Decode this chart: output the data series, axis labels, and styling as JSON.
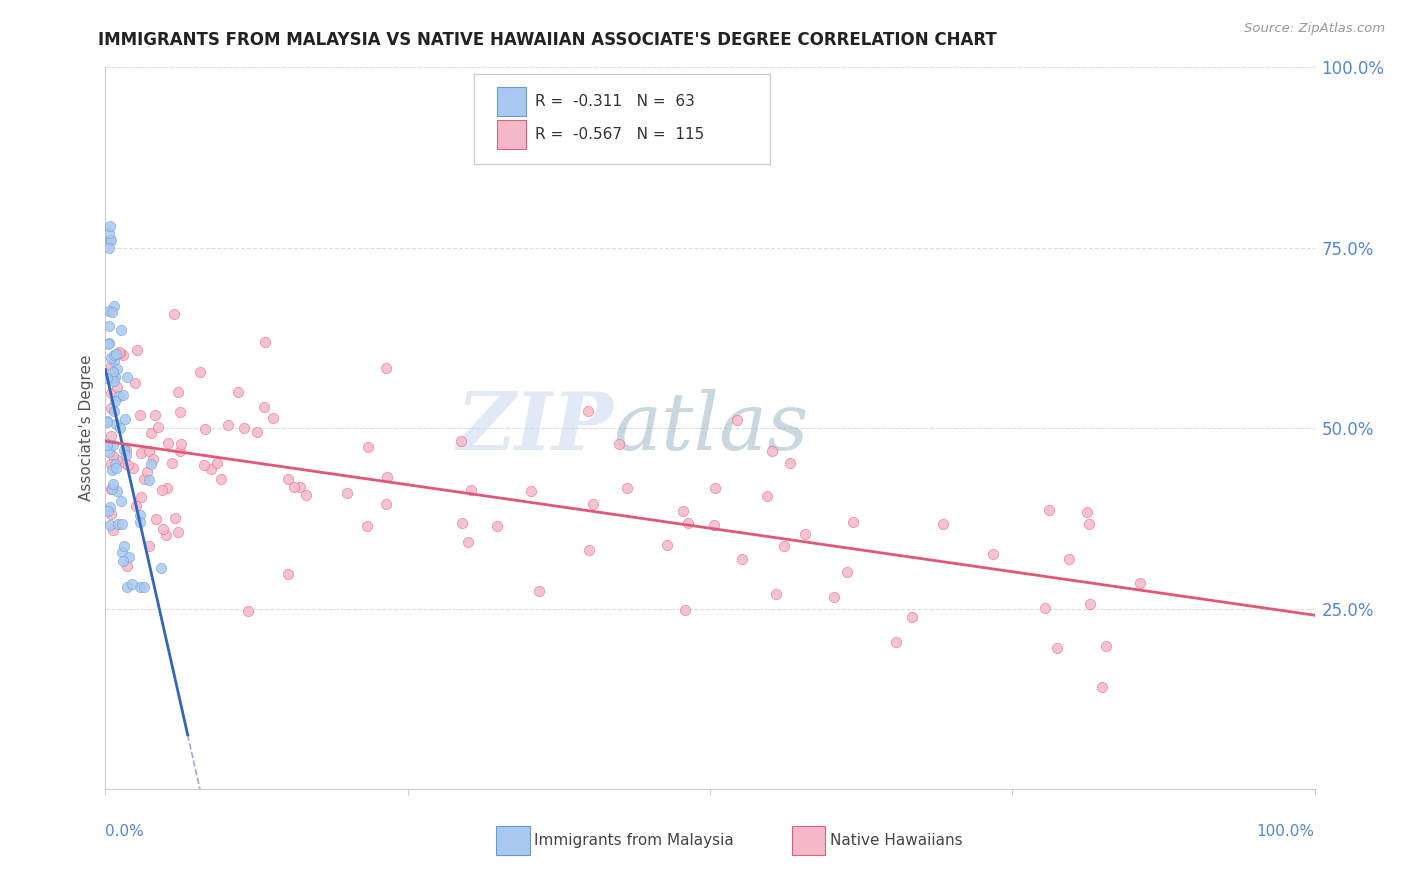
{
  "title": "IMMIGRANTS FROM MALAYSIA VS NATIVE HAWAIIAN ASSOCIATE'S DEGREE CORRELATION CHART",
  "source": "Source: ZipAtlas.com",
  "ylabel": "Associate's Degree",
  "right_yticks": [
    "25.0%",
    "50.0%",
    "75.0%",
    "100.0%"
  ],
  "right_ytick_vals": [
    0.25,
    0.5,
    0.75,
    1.0
  ],
  "legend_blue_rval": "-0.311",
  "legend_blue_nval": "63",
  "legend_pink_rval": "-0.567",
  "legend_pink_nval": "115",
  "color_blue_fill": "#A8C8F0",
  "color_blue_edge": "#6699CC",
  "color_pink_fill": "#F5B8C8",
  "color_pink_edge": "#E06080",
  "color_blue_line": "#3366BB",
  "color_pink_line": "#E05878",
  "color_dashed": "#99AACC",
  "color_rval_blue": "#3355AA",
  "color_rval_pink": "#DD3366",
  "grid_color": "#DDDDDD",
  "axis_color": "#CCCCCC",
  "ylim": [
    0.0,
    1.0
  ],
  "xlim": [
    0.0,
    1.0
  ]
}
